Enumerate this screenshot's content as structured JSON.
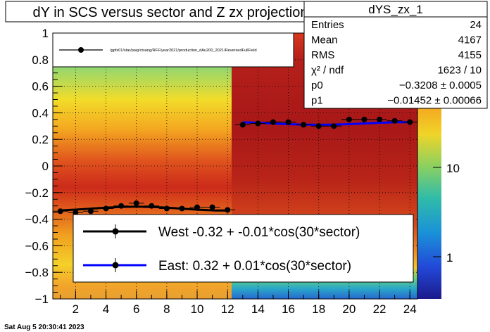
{
  "title": "dY in SCS versus sector and Z zx projection",
  "footer_timestamp": "Sat Aug  5 20:30:41 2023",
  "stats": {
    "name": "dYS_zx_1",
    "rows": [
      {
        "label": "Entries",
        "value": "24"
      },
      {
        "label": "Mean",
        "value": "4167"
      },
      {
        "label": "RMS",
        "value": "4155"
      },
      {
        "label": "χ² / ndf",
        "value": "1623 / 10"
      },
      {
        "label": "p0",
        "value": "−0.3208 ± 0.0005"
      },
      {
        "label": "p1",
        "value": "−0.01452 ± 0.00066"
      }
    ]
  },
  "file_legend": {
    "text": "/gpfs01/star/pwg/ctsang/RFF/year2021/production_dAu200_2021/ReversedFullField"
  },
  "fit_legend": {
    "west": "West -0.32 + -0.01*cos(30*sector)",
    "east": "East:  0.32 +  0.01*cos(30*sector)"
  },
  "colors": {
    "west_line": "#000000",
    "east_line": "#0000ff",
    "marker": "#000000"
  },
  "chart_data": {
    "type": "heatmap",
    "xlim": [
      0.5,
      24.5
    ],
    "ylim": [
      -1,
      1
    ],
    "x_ticks": [
      "2",
      "4",
      "6",
      "8",
      "10",
      "12",
      "14",
      "16",
      "18",
      "20",
      "22",
      "24"
    ],
    "y_ticks": [
      "−1",
      "−0.8",
      "−0.6",
      "−0.4",
      "−0.2",
      "0",
      "0.2",
      "0.4",
      "0.6",
      "0.8",
      "1"
    ],
    "z_scale": "log",
    "z_ticks": [
      "1",
      "10"
    ],
    "grid": true,
    "series": [
      {
        "x": [
          1,
          2,
          3,
          4,
          5,
          6,
          7,
          8,
          9,
          10,
          11,
          12
        ],
        "y": [
          -0.34,
          -0.35,
          -0.34,
          -0.32,
          -0.3,
          -0.28,
          -0.3,
          -0.32,
          -0.32,
          -0.31,
          -0.31,
          -0.33
        ]
      },
      {
        "x": [
          13,
          14,
          15,
          16,
          17,
          18,
          19,
          20,
          21,
          22,
          23,
          24
        ],
        "y": [
          0.31,
          0.32,
          0.33,
          0.33,
          0.31,
          0.3,
          0.3,
          0.35,
          0.35,
          0.35,
          0.34,
          0.33
        ]
      }
    ],
    "fits": [
      {
        "p0": -0.3208,
        "p1": -0.01452,
        "x_range": [
          1,
          12
        ]
      },
      {
        "p0": 0.32,
        "p1": 0.01,
        "x_range": [
          13,
          24
        ]
      }
    ]
  }
}
